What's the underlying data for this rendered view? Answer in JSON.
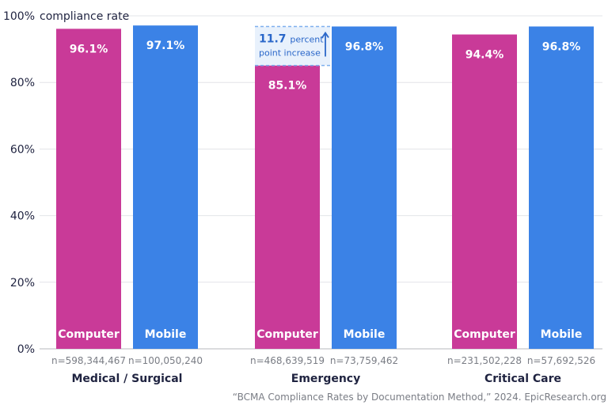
{
  "chart_data": {
    "type": "bar",
    "title": "",
    "ylabel": "compliance rate",
    "xlabel": "",
    "ylim": [
      0,
      100
    ],
    "yticks": [
      "0%",
      "20%",
      "40%",
      "60%",
      "80%",
      "100%"
    ],
    "ytick_values": [
      0,
      20,
      40,
      60,
      80,
      100
    ],
    "grid": true,
    "categories": [
      "Medical / Surgical",
      "Emergency",
      "Critical Care"
    ],
    "series": [
      {
        "name": "Computer",
        "color": "#c93a98",
        "values": [
          96.1,
          85.1,
          94.4
        ],
        "value_labels": [
          "96.1%",
          "85.1%",
          "94.4%"
        ],
        "n_labels": [
          "n=598,344,467",
          "n=468,639,519",
          "n=231,502,228"
        ]
      },
      {
        "name": "Mobile",
        "color": "#3b82e6",
        "values": [
          97.1,
          96.8,
          96.8
        ],
        "value_labels": [
          "97.1%",
          "96.8%",
          "96.8%"
        ],
        "n_labels": [
          "n=100,050,240",
          "n=73,759,462",
          "n=57,692,526"
        ]
      }
    ],
    "annotation": {
      "category": "Emergency",
      "from": 85.1,
      "to": 96.8,
      "value_text": "11.7",
      "line1_rest": "percent",
      "line2": "point increase",
      "color": "#2a67c9",
      "fill": "#e8f1fc"
    },
    "source": "“BCMA Compliance Rates by Documentation Method,” 2024. EpicResearch.org"
  }
}
